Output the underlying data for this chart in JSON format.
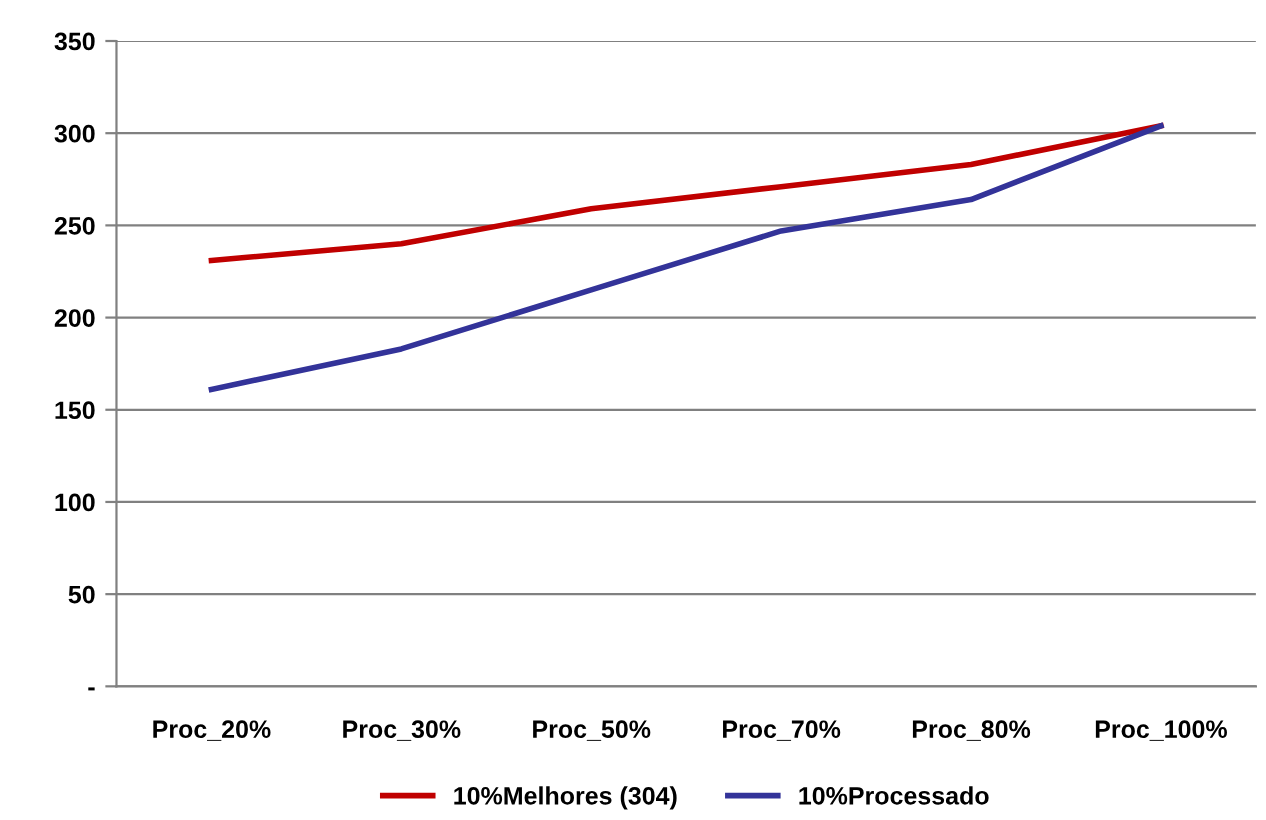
{
  "chart_data": {
    "type": "line",
    "categories": [
      "Proc_20%",
      "Proc_30%",
      "Proc_50%",
      "Proc_70%",
      "Proc_80%",
      "Proc_100%"
    ],
    "series": [
      {
        "name": "10%Melhores (304)",
        "color": "#c00000",
        "values": [
          231,
          240,
          259,
          271,
          283,
          304
        ]
      },
      {
        "name": "10%Processado",
        "color": "#333399",
        "values": [
          161,
          183,
          215,
          247,
          264,
          304
        ]
      }
    ],
    "ylim": [
      0,
      350
    ],
    "yticks": [
      {
        "value": 0,
        "label": "-"
      },
      50,
      100,
      150,
      200,
      250,
      300,
      350
    ],
    "grid": "y",
    "legend": "bottom",
    "marker": "none",
    "line_style": "solid"
  }
}
